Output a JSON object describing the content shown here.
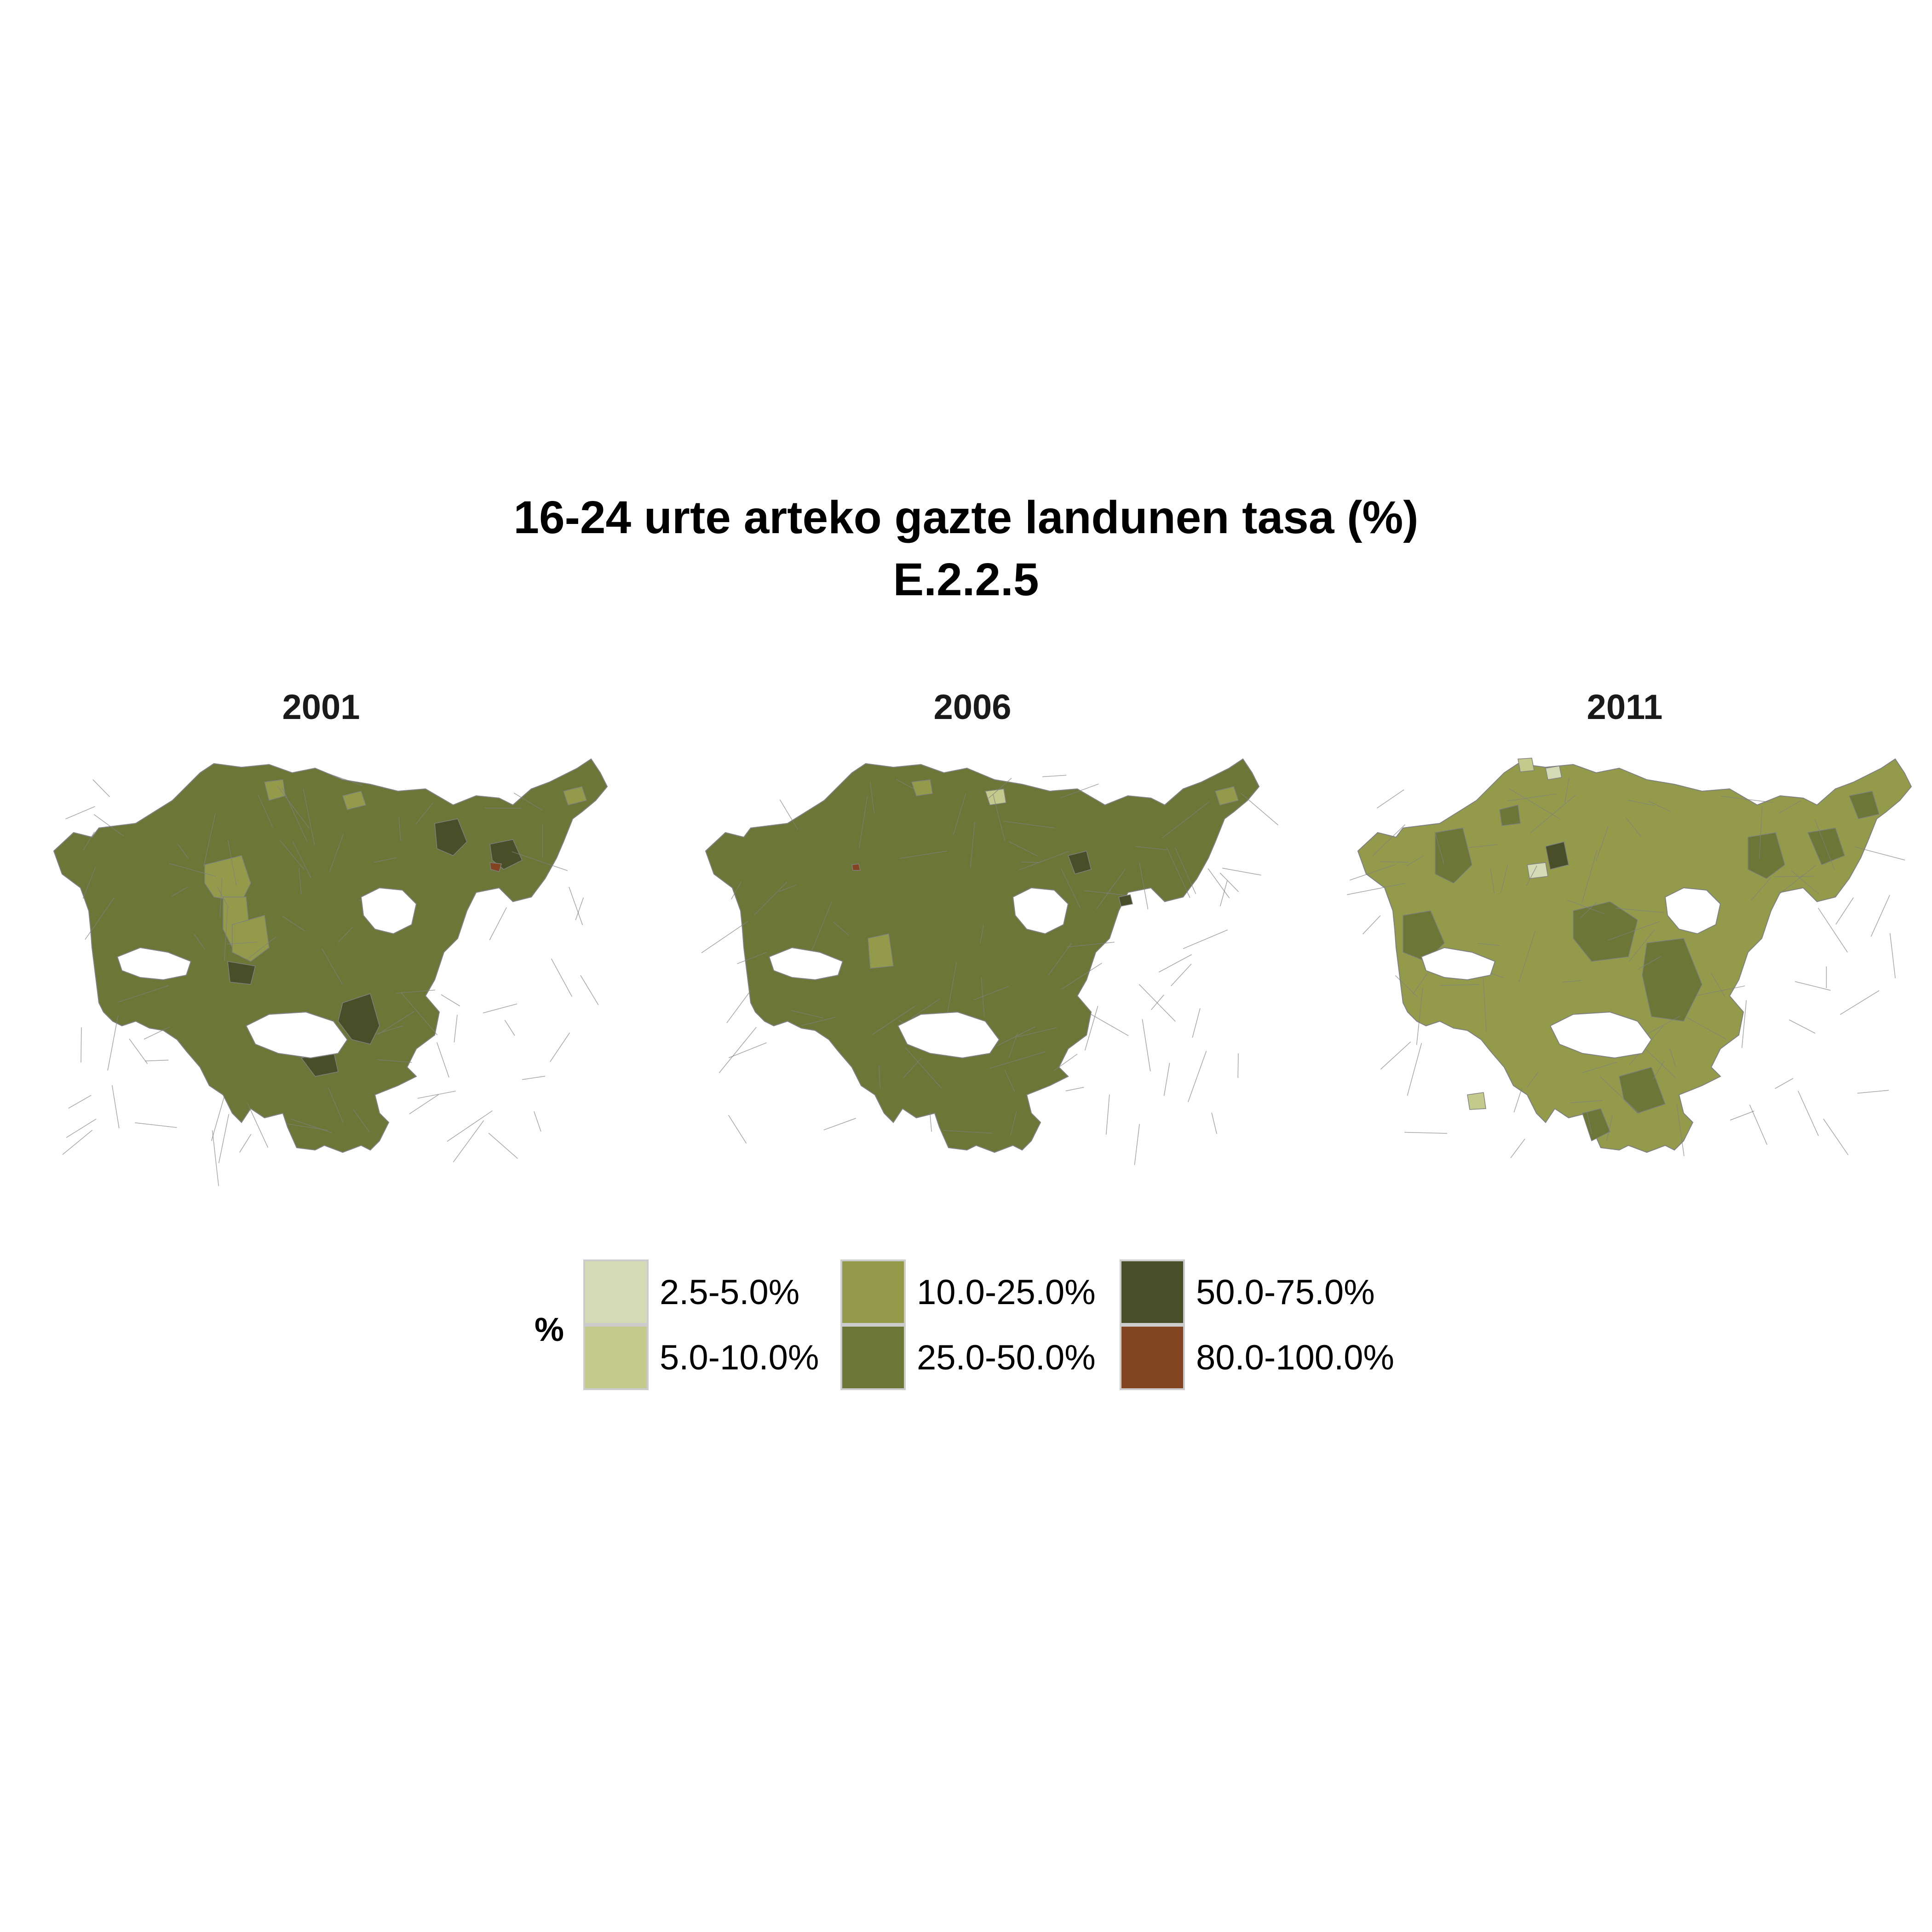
{
  "title": {
    "line1": "16-24 urte arteko gazte landunen tasa (%)",
    "line2": "E.2.2.5"
  },
  "panels": [
    {
      "year": "2001",
      "dominant_class": "25.0-50.0%"
    },
    {
      "year": "2006",
      "dominant_class": "25.0-50.0%"
    },
    {
      "year": "2011",
      "dominant_class": "10.0-25.0%"
    }
  ],
  "legend": {
    "title": "%",
    "items": [
      {
        "label": "2.5-5.0%",
        "color": "#d3dab4"
      },
      {
        "label": "5.0-10.0%",
        "color": "#c4c98c"
      },
      {
        "label": "10.0-25.0%",
        "color": "#939b4a"
      },
      {
        "label": "25.0-50.0%",
        "color": "#6b7637"
      },
      {
        "label": "50.0-75.0%",
        "color": "#484f28"
      },
      {
        "label": "80.0-100.0%",
        "color": "#824421"
      }
    ]
  },
  "colors": {
    "border": "#808080",
    "background": "#ffffff"
  }
}
